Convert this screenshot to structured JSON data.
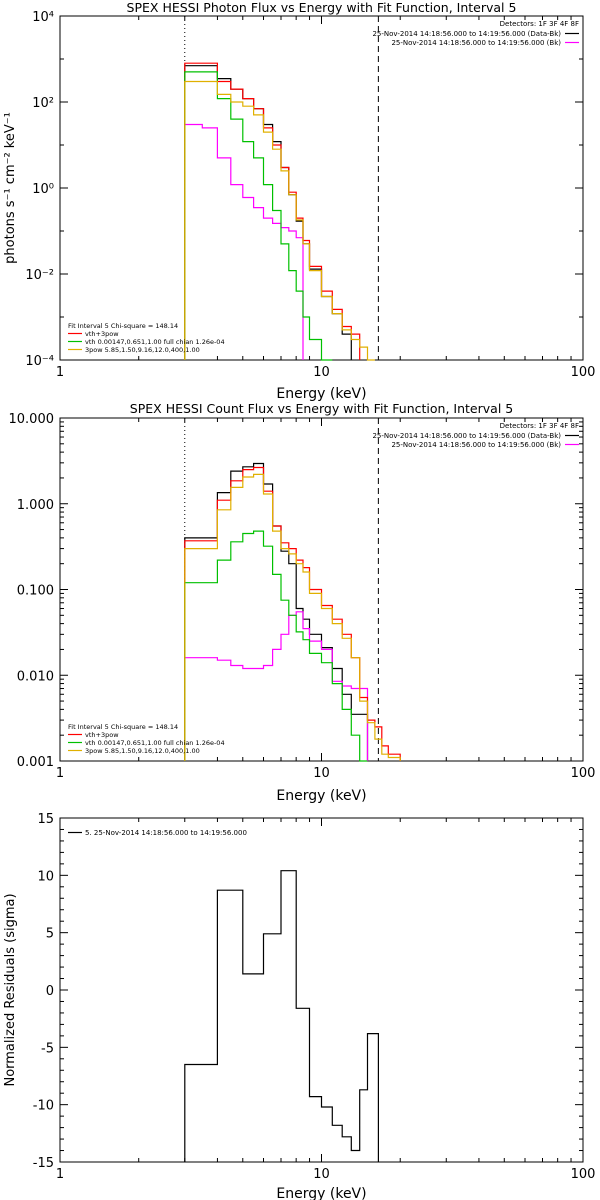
{
  "chart_data": [
    {
      "type": "line",
      "title": "SPEX HESSI Photon Flux vs Energy with Fit Function, Interval 5",
      "xlabel": "Energy (keV)",
      "ylabel": "photons s⁻¹ cm⁻² keV⁻¹",
      "xscale": "log",
      "yscale": "log",
      "xlim": [
        1,
        100
      ],
      "ylim": [
        0.0001,
        10000
      ],
      "x_tick_labels": [
        "1",
        "10",
        "100"
      ],
      "y_tick_labels": [
        "10⁻⁴",
        "10⁻²",
        "10⁰",
        "10²",
        "10⁴"
      ],
      "grid": false,
      "vlines": [
        {
          "x": 3.0,
          "style": "dotted"
        },
        {
          "x": 16.5,
          "style": "dashed"
        }
      ],
      "legend_header": "Detectors: 1F 3F 4F 8F",
      "legend": [
        {
          "label": "25-Nov-2014 14:18:56.000 to 14:19:56.000 (Data-Bk)",
          "color": "#000000"
        },
        {
          "label": "25-Nov-2014 14:18:56.000 to 14:19:56.000 (Bk)",
          "color": "#ff00ff"
        }
      ],
      "fit_text": [
        {
          "label": "Fit Interval 5   Chi-square = 148.14",
          "color": "#000000"
        },
        {
          "label": "vth+3pow",
          "color": "#ff0000"
        },
        {
          "label": "vth 0.00147,0.651,1.00  full chian 1.26e-04",
          "color": "#00c000"
        },
        {
          "label": "3pow 5.85,1.50,9.16,12.0,400,1.00",
          "color": "#e0b000"
        }
      ],
      "edges": [
        3.0,
        3.5,
        4.0,
        4.5,
        5.0,
        5.5,
        6.0,
        6.5,
        7.0,
        7.5,
        8.0,
        8.5,
        9.0,
        10.0,
        11.0,
        12.0,
        13.0,
        14.0,
        15.0,
        16.0,
        17.0,
        18.0,
        20.0
      ],
      "series": [
        {
          "name": "Data-Bk",
          "color": "#000000",
          "values": [
            700,
            700,
            350,
            200,
            120,
            70,
            30,
            12,
            3,
            0.7,
            0.17,
            0.05,
            0.013,
            0.003,
            0.0012,
            0.0004
          ]
        },
        {
          "name": "Bk",
          "color": "#ff00ff",
          "values": [
            30,
            25,
            5,
            1.2,
            0.6,
            0.35,
            0.2,
            0.15,
            0.12,
            0.1,
            0.07
          ]
        },
        {
          "name": "vth+3pow",
          "color": "#ff0000",
          "values": [
            800,
            800,
            300,
            200,
            120,
            70,
            25,
            10,
            3,
            0.8,
            0.2,
            0.06,
            0.015,
            0.004,
            0.0015,
            0.0006,
            0.0004
          ]
        },
        {
          "name": "vth",
          "color": "#00c000",
          "values": [
            500,
            500,
            120,
            40,
            12,
            5,
            1.2,
            0.3,
            0.05,
            0.012,
            0.004,
            0.001,
            0.0003,
            0.0001
          ]
        },
        {
          "name": "3pow",
          "color": "#e0b000",
          "values": [
            300,
            300,
            150,
            100,
            80,
            50,
            20,
            8,
            2.5,
            0.7,
            0.18,
            0.05,
            0.012,
            0.003,
            0.0012,
            0.0005,
            0.0003,
            0.0002,
            0.0001
          ]
        }
      ]
    },
    {
      "type": "line",
      "title": "SPEX HESSI Count Flux vs Energy with Fit Function, Interval 5",
      "xlabel": "Energy (keV)",
      "ylabel": "",
      "xscale": "log",
      "yscale": "log",
      "xlim": [
        1,
        100
      ],
      "ylim": [
        0.001,
        10
      ],
      "x_tick_labels": [
        "1",
        "10",
        "100"
      ],
      "y_tick_labels": [
        "0.001",
        "0.010",
        "0.100",
        "1.000",
        "10.000"
      ],
      "grid": false,
      "vlines": [
        {
          "x": 3.0,
          "style": "dotted"
        },
        {
          "x": 16.5,
          "style": "dashed"
        }
      ],
      "legend_header": "Detectors: 1F 3F 4F 8F",
      "legend": [
        {
          "label": "25-Nov-2014 14:18:56.000 to 14:19:56.000 (Data-Bk)",
          "color": "#000000"
        },
        {
          "label": "25-Nov-2014 14:18:56.000 to 14:19:56.000 (Bk)",
          "color": "#ff00ff"
        }
      ],
      "fit_text": [
        {
          "label": "Fit Interval 5   Chi-square = 148.14",
          "color": "#000000"
        },
        {
          "label": "vth+3pow",
          "color": "#ff0000"
        },
        {
          "label": "vth 0.00147,0.651,1.00  full chian 1.26e-04",
          "color": "#00c000"
        },
        {
          "label": "3pow 5.85,1.50,9.16,12.0,400,1.00",
          "color": "#e0b000"
        }
      ],
      "edges": [
        3.0,
        3.5,
        4.0,
        4.5,
        5.0,
        5.5,
        6.0,
        6.5,
        7.0,
        7.5,
        8.0,
        8.5,
        9.0,
        10.0,
        11.0,
        12.0,
        13.0,
        14.0,
        15.0,
        16.0,
        17.0,
        18.0,
        20.0
      ],
      "series": [
        {
          "name": "Data-Bk",
          "color": "#000000",
          "values": [
            0.4,
            0.4,
            1.35,
            2.4,
            2.7,
            2.95,
            1.7,
            0.55,
            0.28,
            0.2,
            0.06,
            0.045,
            0.03,
            0.021,
            0.012,
            0.006,
            0.0035,
            0.0035
          ]
        },
        {
          "name": "Bk",
          "color": "#ff00ff",
          "values": [
            0.016,
            0.016,
            0.015,
            0.013,
            0.012,
            0.012,
            0.013,
            0.02,
            0.03,
            0.05,
            0.055,
            0.035,
            0.025,
            0.02,
            0.0085,
            0.0075,
            0.007,
            0.007
          ]
        },
        {
          "name": "vth+3pow",
          "color": "#ff0000",
          "values": [
            0.37,
            0.37,
            1.1,
            1.85,
            2.5,
            2.65,
            1.4,
            0.55,
            0.35,
            0.3,
            0.22,
            0.18,
            0.1,
            0.065,
            0.045,
            0.03,
            0.016,
            0.0055,
            0.003,
            0.0025,
            0.0015,
            0.0012
          ]
        },
        {
          "name": "vth",
          "color": "#00c000",
          "values": [
            0.12,
            0.12,
            0.22,
            0.36,
            0.45,
            0.48,
            0.32,
            0.15,
            0.075,
            0.05,
            0.032,
            0.026,
            0.018,
            0.014,
            0.008,
            0.004,
            0.002,
            0.0009
          ]
        },
        {
          "name": "3pow",
          "color": "#e0b000",
          "values": [
            0.3,
            0.3,
            0.85,
            1.55,
            2.05,
            2.2,
            1.3,
            0.48,
            0.3,
            0.26,
            0.2,
            0.16,
            0.09,
            0.06,
            0.04,
            0.027,
            0.016,
            0.005,
            0.0028,
            0.0018,
            0.0012,
            0.0011
          ]
        }
      ]
    },
    {
      "type": "line",
      "title": "",
      "xlabel": "Energy (keV)",
      "ylabel": "Normalized Residuals (sigma)",
      "xscale": "log",
      "yscale": "linear",
      "xlim": [
        1,
        100
      ],
      "ylim": [
        -15,
        15
      ],
      "x_tick_labels": [
        "1",
        "10",
        "100"
      ],
      "y_tick_labels": [
        "-15",
        "-10",
        "-5",
        "0",
        "5",
        "10",
        "15"
      ],
      "grid": false,
      "legend": [
        {
          "label": "5. 25-Nov-2014 14:18:56.000 to 14:19:56.000",
          "color": "#000000"
        }
      ],
      "edges": [
        3.0,
        4.0,
        5.0,
        6.0,
        7.0,
        8.0,
        9.0,
        10.0,
        11.0,
        12.0,
        13.0,
        14.0,
        15.0,
        16.5
      ],
      "series": [
        {
          "name": "5",
          "color": "#000000",
          "values": [
            -6.5,
            8.7,
            1.4,
            4.9,
            10.4,
            -1.6,
            -9.3,
            -10.2,
            -11.8,
            -12.8,
            -14.0,
            -8.7,
            -3.8
          ]
        }
      ]
    }
  ]
}
